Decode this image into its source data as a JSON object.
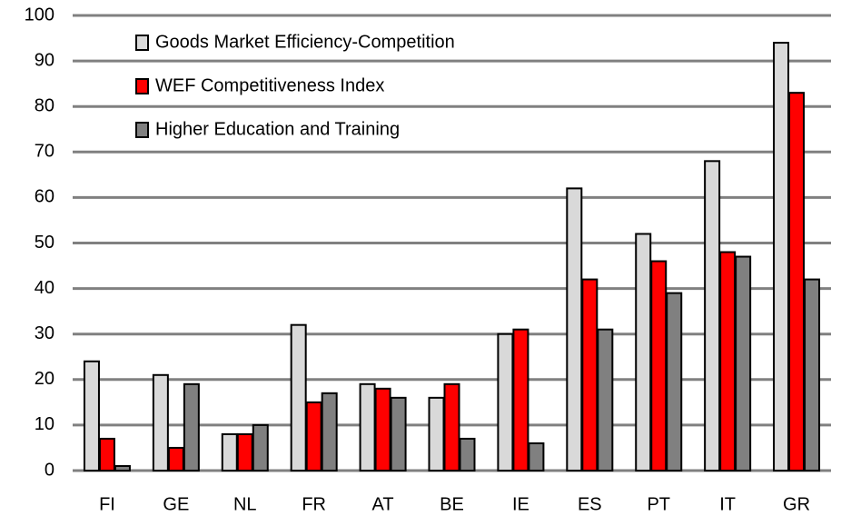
{
  "chart_data": {
    "type": "bar",
    "categories": [
      "FI",
      "GE",
      "NL",
      "FR",
      "AT",
      "BE",
      "IE",
      "ES",
      "PT",
      "IT",
      "GR"
    ],
    "series": [
      {
        "name": "Goods Market Efficiency-Competition",
        "color": "#d9d9d9",
        "values": [
          24,
          21,
          8,
          32,
          19,
          16,
          30,
          62,
          52,
          68,
          94
        ]
      },
      {
        "name": "WEF Competitiveness Index",
        "color": "#ff0000",
        "values": [
          7,
          5,
          8,
          15,
          18,
          19,
          31,
          42,
          46,
          48,
          83
        ]
      },
      {
        "name": "Higher Education and Training",
        "color": "#808080",
        "values": [
          1,
          19,
          10,
          17,
          16,
          7,
          6,
          31,
          39,
          47,
          42
        ]
      }
    ],
    "ylim": [
      0,
      100
    ],
    "yticks": [
      0,
      10,
      20,
      30,
      40,
      50,
      60,
      70,
      80,
      90,
      100
    ],
    "grid": true,
    "legend": "top-left"
  }
}
